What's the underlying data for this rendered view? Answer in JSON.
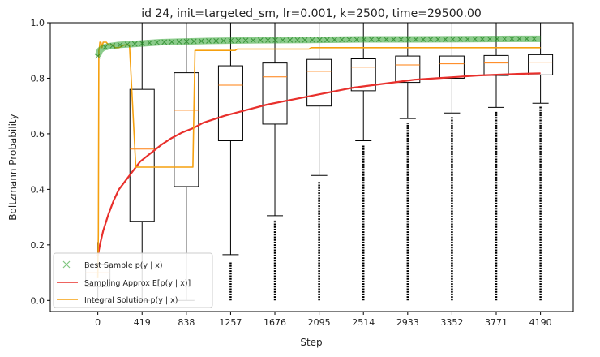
{
  "chart_data": {
    "type": "box+line",
    "title": "id 24, init=targeted_sm, lr=0.001, k=2500, time=29500.00",
    "xlabel": "Step",
    "ylabel": "Boltzmann Probability",
    "xlim": [
      -450,
      4500
    ],
    "ylim": [
      -0.04,
      1.0
    ],
    "x_ticks": [
      0,
      419,
      838,
      1257,
      1676,
      2095,
      2514,
      2933,
      3352,
      3771,
      4190
    ],
    "y_ticks": [
      0.0,
      0.2,
      0.4,
      0.6,
      0.8,
      1.0
    ],
    "y_tick_labels": [
      "0.0",
      "0.2",
      "0.4",
      "0.6",
      "0.8",
      "1.0"
    ],
    "legend": {
      "placement": "lower-left",
      "entries": [
        {
          "label": "Best Sample p(y | x)",
          "color": "#2ca02c",
          "marker": "x"
        },
        {
          "label": "Sampling Approx E[p(y | x)]",
          "color": "#e8302c",
          "marker": "line"
        },
        {
          "label": "Integral Solution p(y | x)",
          "color": "#f5a00f",
          "marker": "line"
        }
      ]
    },
    "boxes": [
      {
        "x": 0,
        "whislo": 0.0,
        "q1": 0.05,
        "med": 0.1,
        "q3": 0.13,
        "whishi": 0.21,
        "fliers_lo": 0.0,
        "fliers_hi": 0.0
      },
      {
        "x": 419,
        "whislo": 0.0,
        "q1": 0.285,
        "med": 0.545,
        "q3": 0.76,
        "whishi": 1.0,
        "fliers_lo": 0.0,
        "fliers_hi": 0.0
      },
      {
        "x": 838,
        "whislo": 0.0,
        "q1": 0.41,
        "med": 0.685,
        "q3": 0.82,
        "whishi": 1.0,
        "fliers_lo": 0.0,
        "fliers_hi": 0.0
      },
      {
        "x": 1257,
        "whislo": 0.165,
        "q1": 0.575,
        "med": 0.775,
        "q3": 0.845,
        "whishi": 1.0,
        "fliers_lo": 0.0,
        "fliers_hi": 0.14
      },
      {
        "x": 1676,
        "whislo": 0.305,
        "q1": 0.635,
        "med": 0.805,
        "q3": 0.855,
        "whishi": 1.0,
        "fliers_lo": 0.0,
        "fliers_hi": 0.29
      },
      {
        "x": 2095,
        "whislo": 0.45,
        "q1": 0.7,
        "med": 0.825,
        "q3": 0.868,
        "whishi": 1.0,
        "fliers_lo": 0.0,
        "fliers_hi": 0.43
      },
      {
        "x": 2514,
        "whislo": 0.575,
        "q1": 0.755,
        "med": 0.84,
        "q3": 0.87,
        "whishi": 1.0,
        "fliers_lo": 0.0,
        "fliers_hi": 0.56
      },
      {
        "x": 2933,
        "whislo": 0.655,
        "q1": 0.785,
        "med": 0.848,
        "q3": 0.88,
        "whishi": 1.0,
        "fliers_lo": 0.0,
        "fliers_hi": 0.64
      },
      {
        "x": 3352,
        "whislo": 0.675,
        "q1": 0.8,
        "med": 0.852,
        "q3": 0.88,
        "whishi": 1.0,
        "fliers_lo": 0.0,
        "fliers_hi": 0.66
      },
      {
        "x": 3771,
        "whislo": 0.695,
        "q1": 0.81,
        "med": 0.855,
        "q3": 0.882,
        "whishi": 1.0,
        "fliers_lo": 0.0,
        "fliers_hi": 0.68
      },
      {
        "x": 4190,
        "whislo": 0.71,
        "q1": 0.812,
        "med": 0.858,
        "q3": 0.885,
        "whishi": 1.0,
        "fliers_lo": 0.0,
        "fliers_hi": 0.7
      }
    ],
    "series": [
      {
        "name": "Sampling Approx E[p(y | x)]",
        "color": "#e8302c",
        "x": [
          0,
          20,
          50,
          100,
          150,
          200,
          300,
          400,
          500,
          600,
          700,
          800,
          900,
          1000,
          1200,
          1400,
          1600,
          1800,
          2000,
          2200,
          2400,
          2600,
          2800,
          3000,
          3200,
          3400,
          3600,
          3800,
          4000,
          4190
        ],
        "y": [
          0.16,
          0.2,
          0.25,
          0.31,
          0.36,
          0.4,
          0.45,
          0.5,
          0.53,
          0.56,
          0.585,
          0.605,
          0.62,
          0.64,
          0.665,
          0.685,
          0.705,
          0.72,
          0.735,
          0.75,
          0.765,
          0.775,
          0.785,
          0.795,
          0.8,
          0.805,
          0.81,
          0.813,
          0.816,
          0.818
        ]
      },
      {
        "name": "Integral Solution p(y | x)",
        "color": "#f5a00f",
        "x": [
          0,
          5,
          10,
          15,
          20,
          30,
          40,
          50,
          80,
          100,
          130,
          150,
          160,
          200,
          250,
          300,
          360,
          400,
          440,
          800,
          880,
          900,
          920,
          1300,
          1320,
          1340,
          1360,
          2000,
          2020,
          4190
        ],
        "y": [
          0.08,
          0.24,
          0.9,
          0.91,
          0.93,
          0.93,
          0.91,
          0.93,
          0.93,
          0.92,
          0.92,
          0.92,
          0.91,
          0.91,
          0.92,
          0.92,
          0.48,
          0.48,
          0.48,
          0.48,
          0.48,
          0.48,
          0.9,
          0.9,
          0.905,
          0.905,
          0.905,
          0.905,
          0.91,
          0.91
        ]
      },
      {
        "name": "Best Sample p(y | x)",
        "color": "#2ca02c",
        "marker": "x",
        "x": [
          0,
          20,
          50,
          100,
          200,
          400,
          600,
          800,
          1000,
          1500,
          2000,
          2500,
          3000,
          3500,
          4000,
          4190
        ],
        "y": [
          0.88,
          0.9,
          0.91,
          0.915,
          0.92,
          0.925,
          0.93,
          0.932,
          0.934,
          0.937,
          0.938,
          0.94,
          0.94,
          0.941,
          0.942,
          0.942
        ]
      }
    ]
  }
}
